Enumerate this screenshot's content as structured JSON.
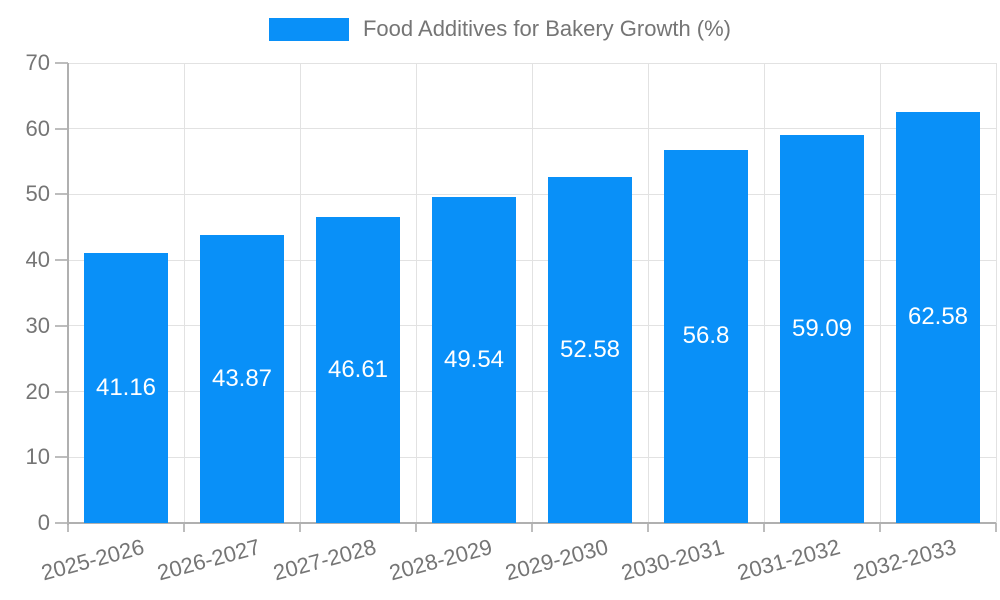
{
  "legend": {
    "label": "Food Additives for Bakery Growth (%)"
  },
  "colors": {
    "bar": "#0990f8",
    "bar_value_text": "#ffffff",
    "legend_text": "#757575",
    "tick_text": "#757575",
    "grid": "#e2e2e2",
    "axis": "#b0b0b0",
    "tick_mark": "#bdbdbd"
  },
  "chart_data": {
    "type": "bar",
    "title": "Food Additives for Bakery Growth (%)",
    "categories": [
      "2025-2026",
      "2026-2027",
      "2027-2028",
      "2028-2029",
      "2029-2030",
      "2030-2031",
      "2031-2032",
      "2032-2033"
    ],
    "values": [
      41.16,
      43.87,
      46.61,
      49.54,
      52.58,
      56.8,
      59.09,
      62.58
    ],
    "value_labels": [
      "41.16",
      "43.87",
      "46.61",
      "49.54",
      "52.58",
      "56.8",
      "59.09",
      "62.58"
    ],
    "xlabel": "",
    "ylabel": "",
    "ylim": [
      0,
      70
    ],
    "yticks": [
      0,
      10,
      20,
      30,
      40,
      50,
      60,
      70
    ],
    "grid": true,
    "legend_position": "top",
    "x_label_rotation_deg": -15,
    "value_label_position": "inside-center"
  }
}
